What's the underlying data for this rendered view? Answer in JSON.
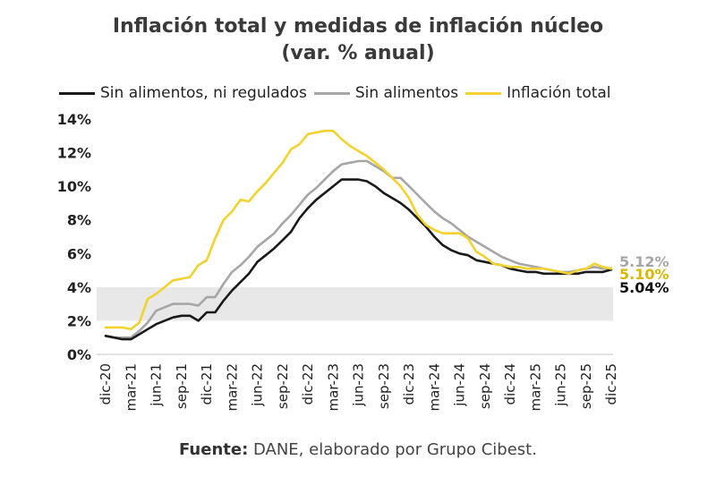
{
  "chart_data": {
    "type": "line",
    "title": "Inflación total y medidas de inflación núcleo",
    "subtitle": "(var. % anual)",
    "xlabel": "",
    "ylabel": "",
    "ylim": [
      0,
      14
    ],
    "yticks": [
      "0%",
      "2%",
      "4%",
      "6%",
      "8%",
      "10%",
      "12%",
      "14%"
    ],
    "ytick_values": [
      0,
      2,
      4,
      6,
      8,
      10,
      12,
      14
    ],
    "grid": false,
    "legend_position": "top",
    "target_band": {
      "from": 2,
      "to": 4,
      "color": "#e8e8e8"
    },
    "x": [
      "dic-20",
      "ene-21",
      "feb-21",
      "mar-21",
      "abr-21",
      "may-21",
      "jun-21",
      "jul-21",
      "ago-21",
      "sep-21",
      "oct-21",
      "nov-21",
      "dic-21",
      "ene-22",
      "feb-22",
      "mar-22",
      "abr-22",
      "may-22",
      "jun-22",
      "jul-22",
      "ago-22",
      "sep-22",
      "oct-22",
      "nov-22",
      "dic-22",
      "ene-23",
      "feb-23",
      "mar-23",
      "abr-23",
      "may-23",
      "jun-23",
      "jul-23",
      "ago-23",
      "sep-23",
      "oct-23",
      "nov-23",
      "dic-23",
      "ene-24",
      "feb-24",
      "mar-24",
      "abr-24",
      "may-24",
      "jun-24",
      "jul-24",
      "ago-24",
      "sep-24",
      "oct-24",
      "nov-24",
      "dic-24",
      "ene-25",
      "feb-25",
      "mar-25",
      "abr-25",
      "may-25",
      "jun-25",
      "jul-25",
      "ago-25",
      "sep-25",
      "oct-25",
      "nov-25",
      "dic-25"
    ],
    "xtick_labels": [
      "dic-20",
      "mar-21",
      "jun-21",
      "sep-21",
      "dic-21",
      "mar-22",
      "jun-22",
      "sep-22",
      "dic-22",
      "mar-23",
      "jun-23",
      "sep-23",
      "dic-23",
      "mar-24",
      "jun-24",
      "sep-24",
      "dic-24",
      "mar-25",
      "jun-25",
      "sep-25",
      "dic-25"
    ],
    "series": [
      {
        "name": "Sin alimentos, ni regulados",
        "color": "#1a1a1a",
        "end_label": "5.04%",
        "values": [
          1.1,
          1.0,
          0.9,
          0.9,
          1.2,
          1.5,
          1.8,
          2.0,
          2.2,
          2.3,
          2.3,
          2.0,
          2.5,
          2.5,
          3.2,
          3.8,
          4.3,
          4.8,
          5.5,
          5.9,
          6.3,
          6.8,
          7.3,
          8.1,
          8.7,
          9.2,
          9.6,
          10.0,
          10.4,
          10.4,
          10.4,
          10.3,
          10.0,
          9.6,
          9.3,
          9.0,
          8.6,
          8.1,
          7.6,
          7.0,
          6.5,
          6.2,
          6.0,
          5.9,
          5.6,
          5.5,
          5.4,
          5.3,
          5.1,
          5.0,
          4.9,
          4.9,
          4.8,
          4.8,
          4.8,
          4.8,
          4.8,
          4.9,
          4.9,
          4.9,
          5.04
        ]
      },
      {
        "name": "Sin alimentos",
        "color": "#a6a6a6",
        "end_label": "5.12%",
        "values": [
          1.1,
          1.0,
          1.0,
          1.0,
          1.4,
          1.9,
          2.6,
          2.8,
          3.0,
          3.0,
          3.0,
          2.9,
          3.4,
          3.4,
          4.2,
          4.9,
          5.3,
          5.8,
          6.4,
          6.8,
          7.2,
          7.8,
          8.3,
          8.9,
          9.5,
          9.9,
          10.4,
          10.9,
          11.3,
          11.4,
          11.5,
          11.5,
          11.2,
          10.9,
          10.5,
          10.5,
          10.0,
          9.5,
          9.0,
          8.5,
          8.1,
          7.8,
          7.4,
          7.0,
          6.7,
          6.4,
          6.1,
          5.8,
          5.6,
          5.4,
          5.3,
          5.2,
          5.1,
          5.0,
          4.9,
          4.9,
          5.0,
          5.1,
          5.2,
          5.1,
          5.12
        ]
      },
      {
        "name": "Inflación total",
        "color": "#f2d22e",
        "end_label": "5.10%",
        "values": [
          1.6,
          1.6,
          1.6,
          1.5,
          1.9,
          3.3,
          3.6,
          4.0,
          4.4,
          4.5,
          4.6,
          5.3,
          5.6,
          6.9,
          8.0,
          8.5,
          9.2,
          9.1,
          9.7,
          10.2,
          10.8,
          11.4,
          12.2,
          12.5,
          13.1,
          13.2,
          13.3,
          13.3,
          12.8,
          12.4,
          12.1,
          11.8,
          11.4,
          11.0,
          10.5,
          10.0,
          9.3,
          8.3,
          7.7,
          7.4,
          7.2,
          7.2,
          7.2,
          6.9,
          6.1,
          5.8,
          5.4,
          5.3,
          5.2,
          5.2,
          5.1,
          5.1,
          5.1,
          5.0,
          4.9,
          4.8,
          5.0,
          5.1,
          5.4,
          5.2,
          5.1
        ]
      }
    ]
  },
  "header": {
    "title": "Inflación total y medidas de inflación núcleo",
    "subtitle": "(var. % anual)"
  },
  "legend": [
    {
      "label": "Sin alimentos, ni regulados",
      "color": "#1a1a1a"
    },
    {
      "label": "Sin alimentos",
      "color": "#a6a6a6"
    },
    {
      "label": "Inflación total",
      "color": "#f2d22e"
    }
  ],
  "footer": {
    "source_label": "Fuente:",
    "source_text": " DANE, elaborado por Grupo Cibest."
  }
}
